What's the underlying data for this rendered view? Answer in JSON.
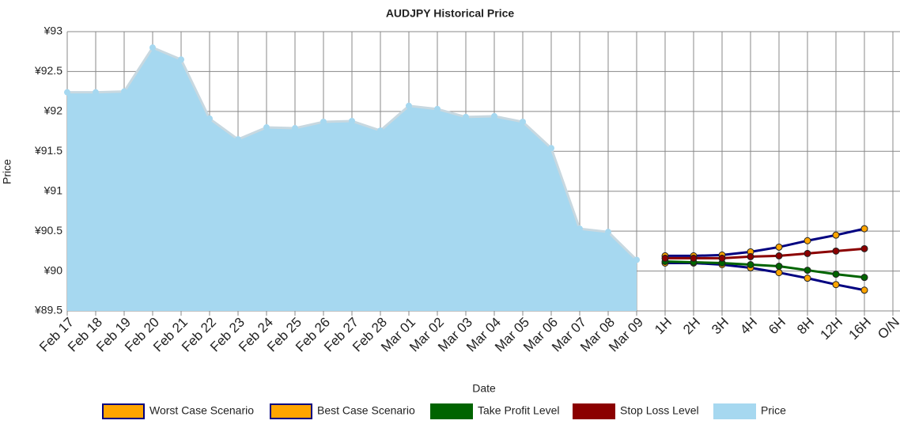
{
  "chart_data": {
    "type": "line",
    "title": "AUDJPY  Historical Price",
    "x_label": "Date",
    "y_label": "Price",
    "categories": [
      "Feb 17",
      "Feb 18",
      "Feb 19",
      "Feb 20",
      "Feb 21",
      "Feb 22",
      "Feb 23",
      "Feb 24",
      "Feb 25",
      "Feb 26",
      "Feb 27",
      "Feb 28",
      "Mar 01",
      "Mar 02",
      "Mar 03",
      "Mar 04",
      "Mar 05",
      "Mar 06",
      "Mar 07",
      "Mar 08",
      "Mar 09",
      "1H",
      "2H",
      "3H",
      "4H",
      "6H",
      "8H",
      "12H",
      "16H",
      "O/N"
    ],
    "ylim": [
      89.5,
      93
    ],
    "yticks": [
      {
        "value": 89.5,
        "label": "¥89.5"
      },
      {
        "value": 90,
        "label": "¥90"
      },
      {
        "value": 90.5,
        "label": "¥90.5"
      },
      {
        "value": 91,
        "label": "¥91"
      },
      {
        "value": 91.5,
        "label": "¥91.5"
      },
      {
        "value": 92,
        "label": "¥92"
      },
      {
        "value": 92.5,
        "label": "¥92.5"
      },
      {
        "value": 93,
        "label": "¥93"
      }
    ],
    "grid": true,
    "series": [
      {
        "name": "Worst Case Scenario",
        "color": "#000080",
        "marker_color": "#ffa500",
        "values": [
          null,
          null,
          null,
          null,
          null,
          null,
          null,
          null,
          null,
          null,
          null,
          null,
          null,
          null,
          null,
          null,
          null,
          null,
          null,
          null,
          null,
          90.1,
          90.1,
          90.08,
          90.04,
          89.98,
          89.91,
          89.83,
          89.76,
          null
        ]
      },
      {
        "name": "Best Case Scenario",
        "color": "#000080",
        "marker_color": "#ffa500",
        "values": [
          null,
          null,
          null,
          null,
          null,
          null,
          null,
          null,
          null,
          null,
          null,
          null,
          null,
          null,
          null,
          null,
          null,
          null,
          null,
          null,
          null,
          90.19,
          90.19,
          90.2,
          90.24,
          90.3,
          90.38,
          90.45,
          90.53,
          null
        ]
      },
      {
        "name": "Take Profit Level",
        "color": "#006400",
        "marker_color": "#006400",
        "values": [
          null,
          null,
          null,
          null,
          null,
          null,
          null,
          null,
          null,
          null,
          null,
          null,
          null,
          null,
          null,
          null,
          null,
          null,
          null,
          null,
          null,
          90.12,
          90.11,
          90.1,
          90.08,
          90.06,
          90.01,
          89.96,
          89.92,
          null
        ]
      },
      {
        "name": "Stop Loss Level",
        "color": "#8b0000",
        "marker_color": "#8b0000",
        "values": [
          null,
          null,
          null,
          null,
          null,
          null,
          null,
          null,
          null,
          null,
          null,
          null,
          null,
          null,
          null,
          null,
          null,
          null,
          null,
          null,
          null,
          90.16,
          90.16,
          90.16,
          90.18,
          90.19,
          90.22,
          90.25,
          90.28,
          null
        ]
      },
      {
        "name": "Price",
        "color": "#a6d8f0",
        "marker_color": "#a6d8f0",
        "area": true,
        "values": [
          92.24,
          92.24,
          92.25,
          92.8,
          92.65,
          91.91,
          91.65,
          91.8,
          91.79,
          91.87,
          91.88,
          91.76,
          92.07,
          92.03,
          91.93,
          91.94,
          91.87,
          91.54,
          90.53,
          90.49,
          90.14,
          null,
          null,
          null,
          null,
          null,
          null,
          null,
          null,
          null
        ]
      }
    ]
  }
}
